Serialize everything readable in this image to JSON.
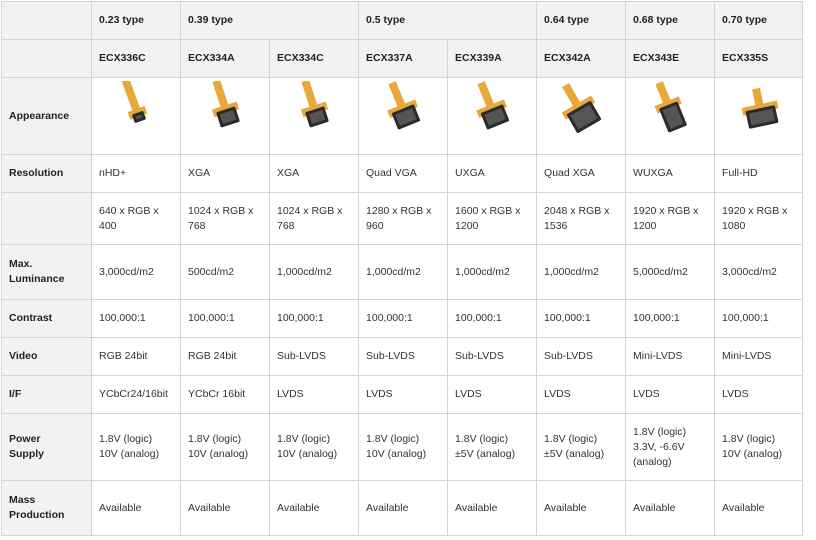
{
  "groups": [
    {
      "label": "0.23 type",
      "span": 1
    },
    {
      "label": "0.39 type",
      "span": 2
    },
    {
      "label": "0.5 type",
      "span": 2
    },
    {
      "label": "0.64 type",
      "span": 1
    },
    {
      "label": "0.68 type",
      "span": 1
    },
    {
      "label": "0.70 type",
      "span": 1
    }
  ],
  "models": [
    "ECX336C",
    "ECX334A",
    "ECX334C",
    "ECX337A",
    "ECX339A",
    "ECX342A",
    "ECX343E",
    "ECX335S"
  ],
  "appearance_label": "Appearance",
  "appearance_icons": [
    "oled-microdisplay-icon",
    "oled-microdisplay-icon",
    "oled-microdisplay-icon",
    "oled-microdisplay-icon",
    "oled-microdisplay-icon",
    "oled-microdisplay-icon",
    "oled-microdisplay-icon",
    "oled-microdisplay-icon"
  ],
  "rows": [
    {
      "label": "Resolution",
      "values": [
        "nHD+",
        "XGA",
        "XGA",
        "Quad VGA",
        "UXGA",
        "Quad XGA",
        "WUXGA",
        "Full-HD"
      ]
    },
    {
      "label": "",
      "values": [
        "640 x RGB x\n400",
        "1024 x RGB x\n768",
        "1024 x RGB x\n768",
        "1280 x RGB x\n960",
        "1600 x RGB x\n1200",
        "2048 x RGB x\n1536",
        "1920 x RGB x\n1200",
        "1920 x RGB x\n1080"
      ]
    },
    {
      "label": "Max.\nLuminance",
      "values": [
        "3,000cd/m2",
        "500cd/m2",
        "1,000cd/m2",
        "1,000cd/m2",
        "1,000cd/m2",
        "1,000cd/m2",
        "5,000cd/m2",
        "3,000cd/m2"
      ]
    },
    {
      "label": "Contrast",
      "values": [
        "100,000:1",
        "100,000:1",
        "100,000:1",
        "100,000:1",
        "100,000:1",
        "100,000:1",
        "100,000:1",
        "100,000:1"
      ]
    },
    {
      "label": "Video",
      "values": [
        "RGB 24bit",
        "RGB 24bit",
        "Sub-LVDS",
        "Sub-LVDS",
        "Sub-LVDS",
        "Sub-LVDS",
        "Mini-LVDS",
        "Mini-LVDS"
      ]
    },
    {
      "label": "I/F",
      "values": [
        "YCbCr24/16bit",
        "YCbCr 16bit",
        "LVDS",
        "LVDS",
        "LVDS",
        "LVDS",
        "LVDS",
        "LVDS"
      ]
    },
    {
      "label": "Power\nSupply",
      "values": [
        "1.8V (logic)\n10V (analog)",
        "1.8V (logic)\n10V (analog)",
        "1.8V (logic)\n10V (analog)",
        "1.8V (logic)\n10V (analog)",
        "1.8V (logic)\n±5V (analog)",
        "1.8V (logic)\n±5V (analog)",
        "1.8V (logic)\n3.3V, -6.6V\n(analog)",
        "1.8V (logic)\n10V (analog)"
      ]
    },
    {
      "label": "Mass\nProduction",
      "values": [
        "Available",
        "Available",
        "Available",
        "Available",
        "Available",
        "Available",
        "Available",
        "Available"
      ]
    }
  ],
  "colors": {
    "header_bg": "#f2f2f2",
    "border": "#d4d4d4",
    "flex_cable": "#e8a93a",
    "chip_body": "#2b2b2b"
  }
}
